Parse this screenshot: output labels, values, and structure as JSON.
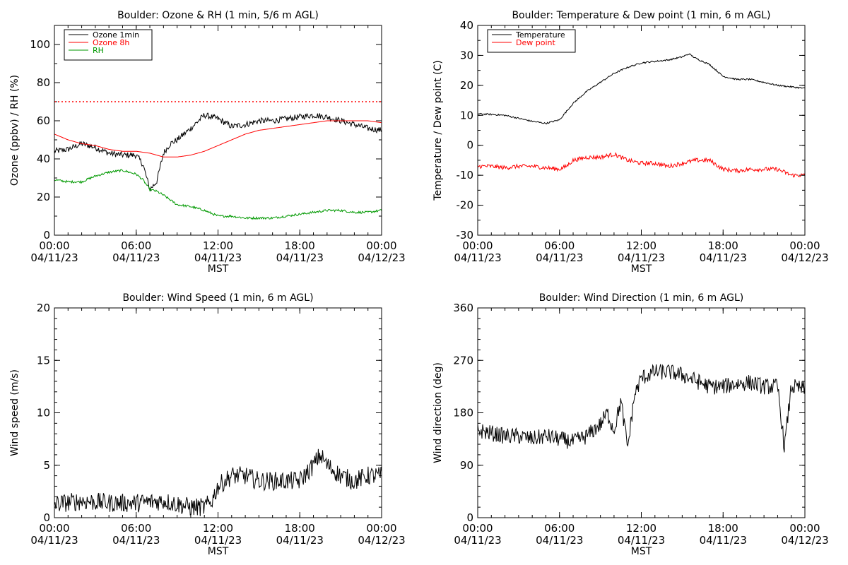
{
  "chart_data": [
    {
      "id": "ozone",
      "type": "line",
      "title": "Boulder: Ozone & RH (1 min, 5/6 m AGL)",
      "xlabel": "MST",
      "ylabel": "Ozone (ppbv) / RH (%)",
      "xlim": [
        0,
        24
      ],
      "ylim": [
        0,
        110
      ],
      "yticks": [
        0,
        20,
        40,
        60,
        80,
        100
      ],
      "minor_y": 10,
      "xticks": [
        {
          "hour": 0,
          "time": "00:00",
          "date": "04/11/23"
        },
        {
          "hour": 6,
          "time": "06:00",
          "date": "04/11/23"
        },
        {
          "hour": 12,
          "time": "12:00",
          "date": "04/11/23"
        },
        {
          "hour": 18,
          "time": "18:00",
          "date": "04/11/23"
        },
        {
          "hour": 24,
          "time": "00:00",
          "date": "04/12/23"
        }
      ],
      "legend_position": "top-left",
      "reference_line": {
        "y": 70,
        "color": "#ff0000",
        "style": "dotted"
      },
      "series": [
        {
          "name": "Ozone 1min",
          "color": "#000000",
          "noise": 1.6,
          "x": [
            0,
            1,
            2,
            3,
            4,
            5,
            6,
            6.5,
            7,
            7.5,
            8,
            8.5,
            9,
            10,
            11,
            12,
            13,
            14,
            15,
            16,
            17,
            18,
            19,
            20,
            21,
            22,
            23,
            24
          ],
          "y": [
            44,
            45,
            48,
            46,
            43,
            42,
            42,
            37,
            24,
            28,
            43,
            48,
            50,
            56,
            63,
            61,
            57,
            58,
            60,
            60,
            61,
            62,
            63,
            62,
            60,
            58,
            56,
            55
          ]
        },
        {
          "name": "Ozone 8h",
          "color": "#ff0000",
          "noise": 0,
          "x": [
            0,
            1,
            2,
            3,
            4,
            5,
            6,
            7,
            8,
            9,
            10,
            11,
            12,
            13,
            14,
            15,
            16,
            17,
            18,
            19,
            20,
            21,
            22,
            23,
            24
          ],
          "y": [
            53,
            50,
            48,
            47,
            45,
            44,
            44,
            43,
            41,
            41,
            42,
            44,
            47,
            50,
            53,
            55,
            56,
            57,
            58,
            59,
            60,
            60,
            60,
            60,
            59
          ]
        },
        {
          "name": "RH",
          "color": "#009900",
          "noise": 0.6,
          "x": [
            0,
            1,
            2,
            3,
            4,
            5,
            6,
            6.5,
            7,
            7.5,
            8,
            9,
            10,
            11,
            12,
            13,
            14,
            15,
            16,
            17,
            18,
            19,
            20,
            21,
            22,
            23,
            24
          ],
          "y": [
            29,
            28,
            28,
            31,
            33,
            34,
            32,
            29,
            24,
            23,
            21,
            16,
            15,
            13,
            10,
            10,
            9,
            9,
            9,
            10,
            11,
            12,
            13,
            13,
            12,
            12,
            13
          ]
        }
      ]
    },
    {
      "id": "temp",
      "type": "line",
      "title": "Boulder: Temperature & Dew point (1 min, 6 m AGL)",
      "xlabel": "MST",
      "ylabel": "Temperature / Dew point (C)",
      "xlim": [
        0,
        24
      ],
      "ylim": [
        -30,
        40
      ],
      "yticks": [
        -30,
        -20,
        -10,
        0,
        10,
        20,
        30,
        40
      ],
      "minor_y": 5,
      "xticks": [
        {
          "hour": 0,
          "time": "00:00",
          "date": "04/11/23"
        },
        {
          "hour": 6,
          "time": "06:00",
          "date": "04/11/23"
        },
        {
          "hour": 12,
          "time": "12:00",
          "date": "04/11/23"
        },
        {
          "hour": 18,
          "time": "18:00",
          "date": "04/11/23"
        },
        {
          "hour": 24,
          "time": "00:00",
          "date": "04/12/23"
        }
      ],
      "legend_position": "top-left",
      "series": [
        {
          "name": "Temperature",
          "color": "#000000",
          "noise": 0.25,
          "x": [
            0,
            1,
            2,
            3,
            4,
            5,
            6,
            7,
            8,
            9,
            10,
            11,
            12,
            13,
            14,
            15,
            15.5,
            16,
            17,
            18,
            19,
            20,
            21,
            22,
            23,
            24
          ],
          "y": [
            10.5,
            10.3,
            10,
            9,
            8,
            7.3,
            8.5,
            14,
            18,
            21,
            24,
            26,
            27.5,
            28,
            28.5,
            29.5,
            30.5,
            29,
            27,
            23,
            22,
            22,
            21,
            20,
            19.5,
            19
          ]
        },
        {
          "name": "Dew point",
          "color": "#ff0000",
          "noise": 0.7,
          "x": [
            0,
            1,
            2,
            3,
            4,
            5,
            6,
            6.5,
            7,
            8,
            9,
            10,
            11,
            12,
            13,
            14,
            15,
            16,
            17,
            18,
            19,
            20,
            21,
            22,
            23,
            24
          ],
          "y": [
            -7,
            -7,
            -7.5,
            -7,
            -7,
            -7.5,
            -8,
            -7,
            -5,
            -4,
            -4,
            -3,
            -5,
            -6,
            -6,
            -7,
            -6,
            -5,
            -5,
            -8,
            -8.5,
            -8,
            -8,
            -8,
            -10,
            -10
          ]
        }
      ]
    },
    {
      "id": "wspd",
      "type": "line",
      "title": "Boulder: Wind Speed (1 min, 6 m AGL)",
      "xlabel": "MST",
      "ylabel": "Wind speed (m/s)",
      "xlim": [
        0,
        24
      ],
      "ylim": [
        0,
        20
      ],
      "yticks": [
        0,
        5,
        10,
        15,
        20
      ],
      "minor_y": 1,
      "xticks": [
        {
          "hour": 0,
          "time": "00:00",
          "date": "04/11/23"
        },
        {
          "hour": 6,
          "time": "06:00",
          "date": "04/11/23"
        },
        {
          "hour": 12,
          "time": "12:00",
          "date": "04/11/23"
        },
        {
          "hour": 18,
          "time": "18:00",
          "date": "04/11/23"
        },
        {
          "hour": 24,
          "time": "00:00",
          "date": "04/12/23"
        }
      ],
      "series": [
        {
          "name": "",
          "color": "#000000",
          "noise": 0.9,
          "x": [
            0,
            2,
            4,
            6,
            8,
            10,
            11,
            11.5,
            12,
            13,
            14,
            15,
            16,
            17,
            18,
            19,
            19.5,
            20,
            21,
            22,
            23,
            24
          ],
          "y": [
            1.3,
            1.6,
            1.4,
            1.4,
            1.6,
            1.0,
            1.0,
            1.5,
            3.0,
            4.0,
            4.0,
            3.5,
            3.5,
            3.5,
            3.5,
            5.0,
            6.0,
            5.0,
            4.0,
            3.5,
            4.0,
            4.0
          ]
        }
      ]
    },
    {
      "id": "wdir",
      "type": "line",
      "title": "Boulder: Wind Direction (1 min, 6 m AGL)",
      "xlabel": "MST",
      "ylabel": "Wind direction (deg)",
      "xlim": [
        0,
        24
      ],
      "ylim": [
        0,
        360
      ],
      "yticks": [
        0,
        90,
        180,
        270,
        360
      ],
      "minor_y": 18,
      "xticks": [
        {
          "hour": 0,
          "time": "00:00",
          "date": "04/11/23"
        },
        {
          "hour": 6,
          "time": "06:00",
          "date": "04/11/23"
        },
        {
          "hour": 12,
          "time": "12:00",
          "date": "04/11/23"
        },
        {
          "hour": 18,
          "time": "18:00",
          "date": "04/11/23"
        },
        {
          "hour": 24,
          "time": "00:00",
          "date": "04/12/23"
        }
      ],
      "series": [
        {
          "name": "",
          "color": "#000000",
          "noise": 14,
          "x": [
            0,
            1,
            2,
            3,
            4,
            5,
            6,
            7,
            8,
            9,
            9.5,
            10,
            10.5,
            11,
            11.5,
            12,
            12.5,
            13,
            14,
            15,
            16,
            17,
            18,
            19,
            20,
            21,
            22,
            22.5,
            23,
            24
          ],
          "y": [
            150,
            145,
            140,
            140,
            135,
            140,
            135,
            130,
            140,
            160,
            180,
            150,
            200,
            120,
            210,
            240,
            245,
            250,
            250,
            245,
            235,
            225,
            225,
            230,
            232,
            225,
            225,
            120,
            225,
            220
          ]
        }
      ]
    }
  ]
}
